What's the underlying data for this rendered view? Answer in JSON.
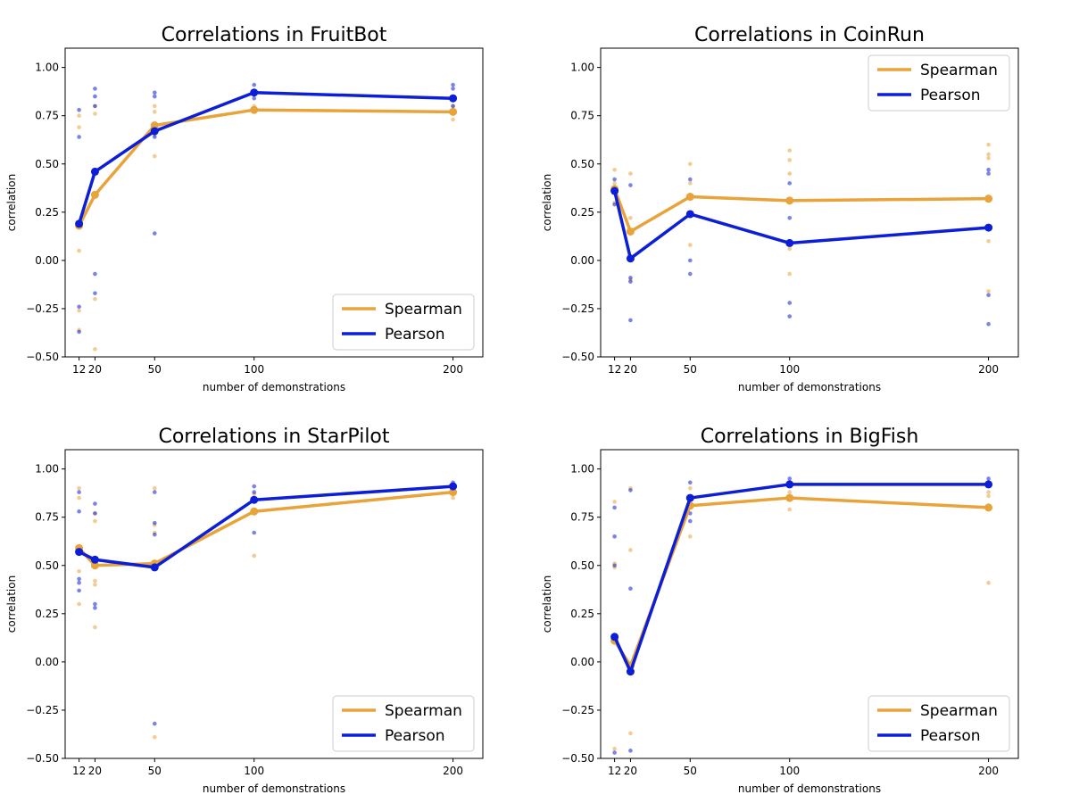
{
  "colors": {
    "spearman": "#E8A33A",
    "pearson": "#0C1ED6"
  },
  "chart_data": [
    {
      "type": "line",
      "title": "Correlations in FruitBot",
      "xlabel": "number of demonstrations",
      "ylabel": "correlation",
      "xlim": [
        5,
        215
      ],
      "ylim": [
        -0.5,
        1.1
      ],
      "xticks": [
        12,
        20,
        50,
        100,
        200
      ],
      "xtick_labels": [
        "12",
        "20",
        "50",
        "100",
        "200"
      ],
      "yticks": [
        -0.5,
        -0.25,
        0.0,
        0.25,
        0.5,
        0.75,
        1.0
      ],
      "ytick_labels": [
        "−0.50",
        "−0.25",
        "0.00",
        "0.25",
        "0.50",
        "0.75",
        "1.00"
      ],
      "legend_position": "lower-right",
      "x": [
        12,
        20,
        50,
        100,
        200
      ],
      "series": [
        {
          "name": "Spearman",
          "color": "#E8A33A",
          "values": [
            0.18,
            0.34,
            0.7,
            0.78,
            0.77
          ],
          "points": [
            [
              12,
              0.75
            ],
            [
              12,
              0.69
            ],
            [
              12,
              0.05
            ],
            [
              12,
              -0.26
            ],
            [
              12,
              -0.36
            ],
            [
              20,
              0.8
            ],
            [
              20,
              0.76
            ],
            [
              20,
              -0.2
            ],
            [
              20,
              -0.46
            ],
            [
              50,
              0.8
            ],
            [
              50,
              0.77
            ],
            [
              50,
              0.54
            ],
            [
              50,
              0.65
            ],
            [
              100,
              0.8
            ],
            [
              100,
              0.78
            ],
            [
              200,
              0.8
            ],
            [
              200,
              0.73
            ],
            [
              200,
              0.76
            ]
          ]
        },
        {
          "name": "Pearson",
          "color": "#0C1ED6",
          "values": [
            0.19,
            0.46,
            0.67,
            0.87,
            0.84
          ],
          "points": [
            [
              12,
              0.78
            ],
            [
              12,
              0.64
            ],
            [
              12,
              -0.24
            ],
            [
              12,
              -0.37
            ],
            [
              20,
              0.89
            ],
            [
              20,
              0.85
            ],
            [
              20,
              0.8
            ],
            [
              20,
              -0.07
            ],
            [
              20,
              -0.17
            ],
            [
              50,
              0.87
            ],
            [
              50,
              0.85
            ],
            [
              50,
              0.64
            ],
            [
              50,
              0.14
            ],
            [
              100,
              0.91
            ],
            [
              100,
              0.84
            ],
            [
              200,
              0.91
            ],
            [
              200,
              0.89
            ],
            [
              200,
              0.8
            ]
          ]
        }
      ]
    },
    {
      "type": "line",
      "title": "Correlations in CoinRun",
      "xlabel": "number of demonstrations",
      "ylabel": "correlation",
      "xlim": [
        5,
        215
      ],
      "ylim": [
        -0.5,
        1.1
      ],
      "xticks": [
        12,
        20,
        50,
        100,
        200
      ],
      "xtick_labels": [
        "12",
        "20",
        "50",
        "100",
        "200"
      ],
      "yticks": [
        -0.5,
        -0.25,
        0.0,
        0.25,
        0.5,
        0.75,
        1.0
      ],
      "ytick_labels": [
        "−0.50",
        "−0.25",
        "0.00",
        "0.25",
        "0.50",
        "0.75",
        "1.00"
      ],
      "legend_position": "upper-right",
      "x": [
        12,
        20,
        50,
        100,
        200
      ],
      "series": [
        {
          "name": "Spearman",
          "color": "#E8A33A",
          "values": [
            0.37,
            0.15,
            0.33,
            0.31,
            0.32
          ],
          "points": [
            [
              12,
              0.47
            ],
            [
              12,
              0.4
            ],
            [
              12,
              0.3
            ],
            [
              20,
              0.45
            ],
            [
              20,
              0.22
            ],
            [
              20,
              -0.1
            ],
            [
              50,
              0.5
            ],
            [
              50,
              0.4
            ],
            [
              50,
              0.08
            ],
            [
              100,
              0.57
            ],
            [
              100,
              0.52
            ],
            [
              100,
              0.45
            ],
            [
              100,
              0.06
            ],
            [
              100,
              -0.07
            ],
            [
              200,
              0.6
            ],
            [
              200,
              0.55
            ],
            [
              200,
              0.53
            ],
            [
              200,
              0.1
            ],
            [
              200,
              -0.16
            ]
          ]
        },
        {
          "name": "Pearson",
          "color": "#0C1ED6",
          "values": [
            0.36,
            0.01,
            0.24,
            0.09,
            0.17
          ],
          "points": [
            [
              12,
              0.42
            ],
            [
              12,
              0.38
            ],
            [
              12,
              0.29
            ],
            [
              20,
              0.39
            ],
            [
              20,
              -0.09
            ],
            [
              20,
              -0.11
            ],
            [
              20,
              -0.31
            ],
            [
              50,
              0.42
            ],
            [
              50,
              0.0
            ],
            [
              50,
              -0.07
            ],
            [
              100,
              0.4
            ],
            [
              100,
              0.22
            ],
            [
              100,
              -0.22
            ],
            [
              100,
              -0.29
            ],
            [
              200,
              0.47
            ],
            [
              200,
              0.45
            ],
            [
              200,
              -0.18
            ],
            [
              200,
              -0.33
            ]
          ]
        }
      ]
    },
    {
      "type": "line",
      "title": "Correlations in StarPilot",
      "xlabel": "number of demonstrations",
      "ylabel": "correlation",
      "xlim": [
        5,
        215
      ],
      "ylim": [
        -0.5,
        1.1
      ],
      "xticks": [
        12,
        20,
        50,
        100,
        200
      ],
      "xtick_labels": [
        "12",
        "20",
        "50",
        "100",
        "200"
      ],
      "yticks": [
        -0.5,
        -0.25,
        0.0,
        0.25,
        0.5,
        0.75,
        1.0
      ],
      "ytick_labels": [
        "−0.50",
        "−0.25",
        "0.00",
        "0.25",
        "0.50",
        "0.75",
        "1.00"
      ],
      "legend_position": "lower-right",
      "x": [
        12,
        20,
        50,
        100,
        200
      ],
      "series": [
        {
          "name": "Spearman",
          "color": "#E8A33A",
          "values": [
            0.59,
            0.5,
            0.51,
            0.78,
            0.88
          ],
          "points": [
            [
              12,
              0.9
            ],
            [
              12,
              0.85
            ],
            [
              12,
              0.47
            ],
            [
              12,
              0.3
            ],
            [
              20,
              0.77
            ],
            [
              20,
              0.73
            ],
            [
              20,
              0.42
            ],
            [
              20,
              0.4
            ],
            [
              20,
              0.18
            ],
            [
              50,
              0.9
            ],
            [
              50,
              0.71
            ],
            [
              50,
              0.67
            ],
            [
              50,
              -0.39
            ],
            [
              100,
              0.87
            ],
            [
              100,
              0.55
            ],
            [
              200,
              0.9
            ],
            [
              200,
              0.85
            ]
          ]
        },
        {
          "name": "Pearson",
          "color": "#0C1ED6",
          "values": [
            0.57,
            0.53,
            0.49,
            0.84,
            0.91
          ],
          "points": [
            [
              12,
              0.88
            ],
            [
              12,
              0.78
            ],
            [
              12,
              0.43
            ],
            [
              12,
              0.41
            ],
            [
              12,
              0.37
            ],
            [
              20,
              0.82
            ],
            [
              20,
              0.77
            ],
            [
              20,
              0.3
            ],
            [
              20,
              0.28
            ],
            [
              50,
              0.88
            ],
            [
              50,
              0.72
            ],
            [
              50,
              0.66
            ],
            [
              50,
              -0.32
            ],
            [
              100,
              0.91
            ],
            [
              100,
              0.88
            ],
            [
              100,
              0.67
            ],
            [
              200,
              0.93
            ]
          ]
        }
      ]
    },
    {
      "type": "line",
      "title": "Correlations in BigFish",
      "xlabel": "number of demonstrations",
      "ylabel": "correlation",
      "xlim": [
        5,
        215
      ],
      "ylim": [
        -0.5,
        1.1
      ],
      "xticks": [
        12,
        20,
        50,
        100,
        200
      ],
      "xtick_labels": [
        "12",
        "20",
        "50",
        "100",
        "200"
      ],
      "yticks": [
        -0.5,
        -0.25,
        0.0,
        0.25,
        0.5,
        0.75,
        1.0
      ],
      "ytick_labels": [
        "−0.50",
        "−0.25",
        "0.00",
        "0.25",
        "0.50",
        "0.75",
        "1.00"
      ],
      "legend_position": "lower-right",
      "x": [
        12,
        20,
        50,
        100,
        200
      ],
      "series": [
        {
          "name": "Spearman",
          "color": "#E8A33A",
          "values": [
            0.11,
            -0.02,
            0.81,
            0.85,
            0.8
          ],
          "points": [
            [
              12,
              0.83
            ],
            [
              12,
              0.51
            ],
            [
              12,
              0.49
            ],
            [
              12,
              -0.45
            ],
            [
              20,
              0.9
            ],
            [
              20,
              0.58
            ],
            [
              20,
              -0.37
            ],
            [
              50,
              0.9
            ],
            [
              50,
              0.86
            ],
            [
              50,
              0.65
            ],
            [
              100,
              0.88
            ],
            [
              100,
              0.79
            ],
            [
              200,
              0.88
            ],
            [
              200,
              0.86
            ],
            [
              200,
              0.41
            ]
          ]
        },
        {
          "name": "Pearson",
          "color": "#0C1ED6",
          "values": [
            0.13,
            -0.05,
            0.85,
            0.92,
            0.92
          ],
          "points": [
            [
              12,
              0.8
            ],
            [
              12,
              0.65
            ],
            [
              12,
              0.5
            ],
            [
              12,
              -0.47
            ],
            [
              20,
              0.89
            ],
            [
              20,
              0.38
            ],
            [
              20,
              -0.46
            ],
            [
              50,
              0.93
            ],
            [
              50,
              0.77
            ],
            [
              50,
              0.73
            ],
            [
              100,
              0.95
            ],
            [
              200,
              0.95
            ],
            [
              200,
              0.81
            ]
          ]
        }
      ]
    }
  ]
}
